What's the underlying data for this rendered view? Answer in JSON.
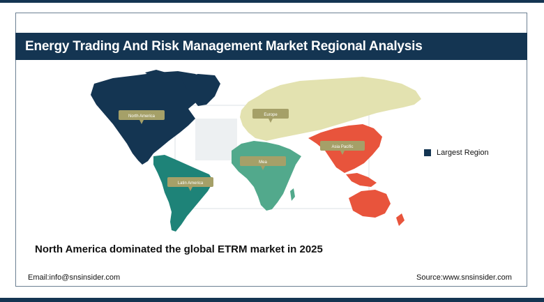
{
  "header": {
    "title": "Energy Trading And Risk Management Market Regional Analysis"
  },
  "map": {
    "regions": [
      {
        "key": "north_america",
        "label": "North America",
        "color": "#143552"
      },
      {
        "key": "europe",
        "label": "Europe",
        "color": "#e3e2b0"
      },
      {
        "key": "asia_pacific",
        "label": "Asia Pacific",
        "color": "#e8543c"
      },
      {
        "key": "mea",
        "label": "Mea",
        "color": "#52a98c"
      },
      {
        "key": "latin_america",
        "label": "Latin America",
        "color": "#1e8378"
      }
    ],
    "callout_color": "#a5a068"
  },
  "legend": {
    "label": "Largest Region",
    "color": "#143552"
  },
  "summary": "North America dominated the global ETRM market in 2025",
  "footer": {
    "email": "Email:info@snsinsider.com",
    "source": "Source:www.snsinsider.com"
  }
}
